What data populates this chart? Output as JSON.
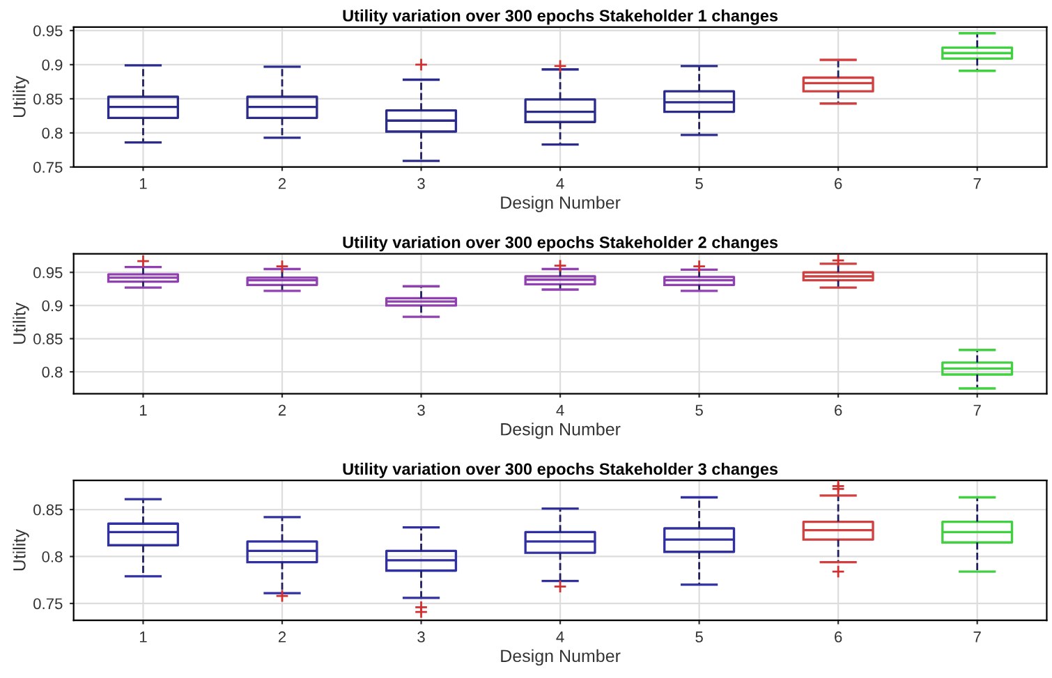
{
  "chart_data": [
    {
      "type": "box",
      "title": "Utility variation over 300 epochs Stakeholder 1 changes",
      "xlabel": "Design Number",
      "ylabel": "Utility",
      "categories": [
        "1",
        "2",
        "3",
        "4",
        "5",
        "6",
        "7"
      ],
      "ylim": [
        0.75,
        0.955
      ],
      "yticks": [
        0.75,
        0.8,
        0.85,
        0.9,
        0.95
      ],
      "grid": true,
      "line_style": "dashed",
      "marker": "cross",
      "colors": [
        "#2b2b8c",
        "#2b2b8c",
        "#2b2b8c",
        "#2b2b8c",
        "#2b2b8c",
        "#d04040",
        "#40d040"
      ],
      "boxes": [
        {
          "low": 0.786,
          "q1": 0.822,
          "median": 0.838,
          "q3": 0.853,
          "high": 0.899
        },
        {
          "low": 0.793,
          "q1": 0.822,
          "median": 0.838,
          "q3": 0.853,
          "high": 0.897
        },
        {
          "low": 0.759,
          "q1": 0.802,
          "median": 0.818,
          "q3": 0.833,
          "high": 0.878,
          "outliers": [
            0.9
          ]
        },
        {
          "low": 0.783,
          "q1": 0.816,
          "median": 0.831,
          "q3": 0.849,
          "high": 0.893,
          "outliers": [
            0.898
          ]
        },
        {
          "low": 0.797,
          "q1": 0.831,
          "median": 0.845,
          "q3": 0.861,
          "high": 0.898
        },
        {
          "low": 0.843,
          "q1": 0.861,
          "median": 0.873,
          "q3": 0.881,
          "high": 0.907
        },
        {
          "low": 0.891,
          "q1": 0.909,
          "median": 0.917,
          "q3": 0.925,
          "high": 0.946
        }
      ]
    },
    {
      "type": "box",
      "title": "Utility variation over 300 epochs Stakeholder 2 changes",
      "xlabel": "Design Number",
      "ylabel": "Utility",
      "categories": [
        "1",
        "2",
        "3",
        "4",
        "5",
        "6",
        "7"
      ],
      "ylim": [
        0.767,
        0.978
      ],
      "yticks": [
        0.8,
        0.85,
        0.9,
        0.95
      ],
      "grid": true,
      "line_style": "dashed",
      "marker": "cross",
      "colors": [
        "#9040b0",
        "#9040b0",
        "#9040b0",
        "#9040b0",
        "#9040b0",
        "#d04040",
        "#40d040"
      ],
      "boxes": [
        {
          "low": 0.927,
          "q1": 0.936,
          "median": 0.942,
          "q3": 0.947,
          "high": 0.958,
          "outliers": [
            0.967
          ]
        },
        {
          "low": 0.922,
          "q1": 0.931,
          "median": 0.938,
          "q3": 0.942,
          "high": 0.955,
          "outliers": [
            0.959
          ]
        },
        {
          "low": 0.883,
          "q1": 0.9,
          "median": 0.906,
          "q3": 0.911,
          "high": 0.929
        },
        {
          "low": 0.924,
          "q1": 0.932,
          "median": 0.939,
          "q3": 0.944,
          "high": 0.955,
          "outliers": [
            0.96
          ]
        },
        {
          "low": 0.922,
          "q1": 0.931,
          "median": 0.938,
          "q3": 0.943,
          "high": 0.954,
          "outliers": [
            0.959
          ]
        },
        {
          "low": 0.927,
          "q1": 0.938,
          "median": 0.944,
          "q3": 0.95,
          "high": 0.963,
          "outliers": [
            0.968
          ]
        },
        {
          "low": 0.775,
          "q1": 0.796,
          "median": 0.805,
          "q3": 0.814,
          "high": 0.833
        }
      ]
    },
    {
      "type": "box",
      "title": "Utility variation over 300 epochs Stakeholder 3 changes",
      "xlabel": "Design Number",
      "ylabel": "Utility",
      "categories": [
        "1",
        "2",
        "3",
        "4",
        "5",
        "6",
        "7"
      ],
      "ylim": [
        0.732,
        0.881
      ],
      "yticks": [
        0.75,
        0.8,
        0.85
      ],
      "grid": true,
      "line_style": "dashed",
      "marker": "cross",
      "colors": [
        "#3030a0",
        "#3030a0",
        "#3030a0",
        "#3030a0",
        "#3030a0",
        "#d04040",
        "#40d040"
      ],
      "boxes": [
        {
          "low": 0.779,
          "q1": 0.812,
          "median": 0.826,
          "q3": 0.835,
          "high": 0.861
        },
        {
          "low": 0.761,
          "q1": 0.794,
          "median": 0.806,
          "q3": 0.816,
          "high": 0.842,
          "outliers": [
            0.758
          ]
        },
        {
          "low": 0.756,
          "q1": 0.785,
          "median": 0.796,
          "q3": 0.806,
          "high": 0.831,
          "outliers": [
            0.746,
            0.741
          ]
        },
        {
          "low": 0.774,
          "q1": 0.804,
          "median": 0.816,
          "q3": 0.826,
          "high": 0.851,
          "outliers": [
            0.768
          ]
        },
        {
          "low": 0.77,
          "q1": 0.805,
          "median": 0.818,
          "q3": 0.83,
          "high": 0.863
        },
        {
          "low": 0.794,
          "q1": 0.818,
          "median": 0.828,
          "q3": 0.837,
          "high": 0.865,
          "outliers": [
            0.875,
            0.872,
            0.784
          ]
        },
        {
          "low": 0.784,
          "q1": 0.815,
          "median": 0.826,
          "q3": 0.837,
          "high": 0.863
        }
      ]
    }
  ]
}
